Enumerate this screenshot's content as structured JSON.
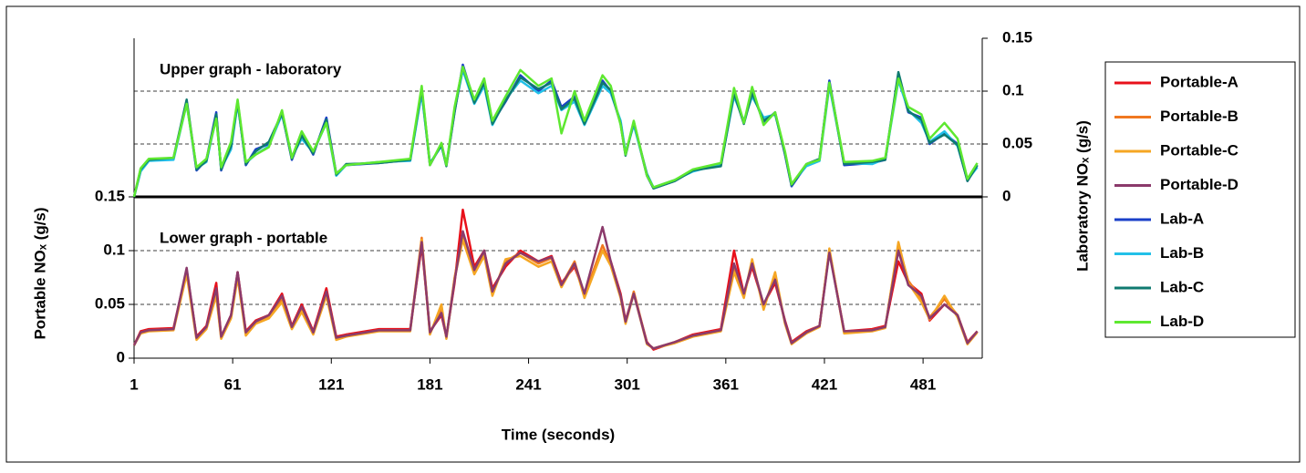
{
  "chart_data": {
    "type": "line",
    "annotations": [
      "Upper graph - laboratory",
      "Lower graph - portable"
    ],
    "x_label": "Time (seconds)",
    "y_label": "Portable NOₓ (g/s)",
    "y2_label": "Laboratory NOₓ (g/s)",
    "xlim": [
      1,
      517
    ],
    "xticks": [
      1,
      61,
      121,
      181,
      241,
      301,
      361,
      421,
      481
    ],
    "ylim": [
      0,
      0.15
    ],
    "yticks": [
      0,
      0.05,
      0.1,
      0.15
    ],
    "y2lim": [
      0,
      0.15
    ],
    "y2ticks": [
      0,
      0.05,
      0.1,
      0.15
    ],
    "grid": true,
    "legend": "right",
    "x": [
      1,
      5,
      10,
      25,
      33,
      39,
      45,
      51,
      54,
      60,
      64,
      69,
      75,
      83,
      91,
      97,
      103,
      110,
      118,
      124,
      130,
      150,
      169,
      176,
      181,
      188,
      191,
      196,
      201,
      208,
      214,
      219,
      227,
      236,
      247,
      255,
      261,
      269,
      275,
      286,
      291,
      297,
      300,
      305,
      313,
      317,
      330,
      341,
      358,
      366,
      372,
      377,
      384,
      391,
      397,
      401,
      410,
      418,
      424,
      433,
      450,
      458,
      466,
      472,
      480,
      485,
      494,
      502,
      508,
      514
    ],
    "series": [
      {
        "name": "Portable-A",
        "color": "#e8101a",
        "values": [
          0.012,
          0.025,
          0.027,
          0.028,
          0.082,
          0.02,
          0.03,
          0.07,
          0.02,
          0.04,
          0.08,
          0.025,
          0.035,
          0.04,
          0.06,
          0.03,
          0.05,
          0.025,
          0.065,
          0.02,
          0.022,
          0.027,
          0.027,
          0.105,
          0.025,
          0.04,
          0.02,
          0.07,
          0.138,
          0.085,
          0.1,
          0.065,
          0.085,
          0.1,
          0.09,
          0.095,
          0.07,
          0.085,
          0.06,
          0.1,
          0.09,
          0.06,
          0.035,
          0.06,
          0.015,
          0.008,
          0.015,
          0.022,
          0.027,
          0.1,
          0.06,
          0.085,
          0.05,
          0.07,
          0.035,
          0.015,
          0.025,
          0.03,
          0.1,
          0.025,
          0.027,
          0.03,
          0.09,
          0.07,
          0.06,
          0.035,
          0.05,
          0.04,
          0.015,
          0.025
        ]
      },
      {
        "name": "Portable-B",
        "color": "#f07820",
        "values": [
          0.012,
          0.024,
          0.026,
          0.027,
          0.08,
          0.018,
          0.028,
          0.06,
          0.019,
          0.038,
          0.078,
          0.022,
          0.033,
          0.038,
          0.055,
          0.028,
          0.045,
          0.023,
          0.06,
          0.018,
          0.021,
          0.026,
          0.026,
          0.112,
          0.023,
          0.045,
          0.019,
          0.075,
          0.115,
          0.08,
          0.098,
          0.06,
          0.09,
          0.098,
          0.088,
          0.093,
          0.068,
          0.09,
          0.058,
          0.105,
          0.088,
          0.058,
          0.033,
          0.062,
          0.014,
          0.009,
          0.015,
          0.021,
          0.026,
          0.085,
          0.058,
          0.09,
          0.048,
          0.075,
          0.033,
          0.014,
          0.024,
          0.03,
          0.1,
          0.024,
          0.026,
          0.029,
          0.105,
          0.072,
          0.055,
          0.038,
          0.055,
          0.04,
          0.014,
          0.025
        ]
      },
      {
        "name": "Portable-C",
        "color": "#f5a623",
        "values": [
          0.012,
          0.023,
          0.025,
          0.026,
          0.078,
          0.017,
          0.027,
          0.058,
          0.018,
          0.037,
          0.075,
          0.021,
          0.032,
          0.037,
          0.052,
          0.027,
          0.043,
          0.022,
          0.058,
          0.017,
          0.02,
          0.025,
          0.025,
          0.11,
          0.022,
          0.05,
          0.018,
          0.074,
          0.11,
          0.078,
          0.095,
          0.058,
          0.092,
          0.095,
          0.085,
          0.09,
          0.066,
          0.088,
          0.056,
          0.1,
          0.086,
          0.056,
          0.032,
          0.06,
          0.013,
          0.009,
          0.014,
          0.02,
          0.025,
          0.08,
          0.056,
          0.092,
          0.045,
          0.08,
          0.032,
          0.013,
          0.023,
          0.029,
          0.102,
          0.023,
          0.025,
          0.028,
          0.108,
          0.07,
          0.052,
          0.036,
          0.058,
          0.038,
          0.013,
          0.024
        ]
      },
      {
        "name": "Portable-D",
        "color": "#8b3a6b",
        "values": [
          0.012,
          0.024,
          0.026,
          0.027,
          0.084,
          0.019,
          0.029,
          0.065,
          0.02,
          0.04,
          0.08,
          0.024,
          0.034,
          0.04,
          0.058,
          0.029,
          0.048,
          0.024,
          0.062,
          0.019,
          0.021,
          0.026,
          0.026,
          0.108,
          0.024,
          0.042,
          0.02,
          0.072,
          0.118,
          0.082,
          0.1,
          0.062,
          0.088,
          0.098,
          0.09,
          0.094,
          0.068,
          0.088,
          0.06,
          0.122,
          0.09,
          0.058,
          0.034,
          0.06,
          0.014,
          0.009,
          0.015,
          0.021,
          0.026,
          0.088,
          0.06,
          0.088,
          0.05,
          0.073,
          0.034,
          0.014,
          0.024,
          0.03,
          0.098,
          0.025,
          0.026,
          0.029,
          0.1,
          0.068,
          0.058,
          0.037,
          0.05,
          0.04,
          0.014,
          0.025
        ]
      },
      {
        "name": "Lab-A",
        "color": "#1a3fc8",
        "axis": "y2",
        "values": [
          0,
          0.025,
          0.035,
          0.036,
          0.09,
          0.025,
          0.035,
          0.08,
          0.025,
          0.05,
          0.09,
          0.03,
          0.045,
          0.05,
          0.08,
          0.035,
          0.06,
          0.04,
          0.075,
          0.022,
          0.03,
          0.032,
          0.035,
          0.1,
          0.03,
          0.05,
          0.03,
          0.08,
          0.125,
          0.09,
          0.11,
          0.07,
          0.09,
          0.115,
          0.1,
          0.11,
          0.085,
          0.095,
          0.07,
          0.11,
          0.1,
          0.07,
          0.04,
          0.07,
          0.02,
          0.008,
          0.015,
          0.025,
          0.03,
          0.1,
          0.07,
          0.1,
          0.07,
          0.08,
          0.04,
          0.01,
          0.03,
          0.035,
          0.11,
          0.03,
          0.032,
          0.035,
          0.115,
          0.08,
          0.075,
          0.05,
          0.06,
          0.05,
          0.015,
          0.03
        ]
      },
      {
        "name": "Lab-B",
        "color": "#22c0e8",
        "axis": "y2",
        "values": [
          0,
          0.024,
          0.034,
          0.035,
          0.088,
          0.027,
          0.033,
          0.075,
          0.027,
          0.045,
          0.088,
          0.032,
          0.04,
          0.048,
          0.078,
          0.038,
          0.055,
          0.042,
          0.07,
          0.02,
          0.03,
          0.033,
          0.034,
          0.098,
          0.032,
          0.048,
          0.031,
          0.082,
          0.12,
          0.088,
          0.105,
          0.068,
          0.092,
          0.11,
          0.098,
          0.105,
          0.082,
          0.09,
          0.068,
          0.105,
          0.098,
          0.072,
          0.042,
          0.068,
          0.022,
          0.009,
          0.016,
          0.024,
          0.031,
          0.095,
          0.072,
          0.095,
          0.075,
          0.078,
          0.042,
          0.012,
          0.029,
          0.034,
          0.105,
          0.032,
          0.031,
          0.036,
          0.11,
          0.082,
          0.07,
          0.052,
          0.062,
          0.048,
          0.016,
          0.028
        ]
      },
      {
        "name": "Lab-C",
        "color": "#0f7a70",
        "axis": "y2",
        "values": [
          0,
          0.026,
          0.035,
          0.037,
          0.092,
          0.026,
          0.034,
          0.078,
          0.026,
          0.048,
          0.09,
          0.031,
          0.043,
          0.052,
          0.079,
          0.036,
          0.058,
          0.041,
          0.073,
          0.021,
          0.031,
          0.032,
          0.035,
          0.102,
          0.031,
          0.049,
          0.029,
          0.081,
          0.123,
          0.089,
          0.108,
          0.069,
          0.091,
          0.113,
          0.102,
          0.108,
          0.083,
          0.093,
          0.069,
          0.108,
          0.101,
          0.069,
          0.039,
          0.071,
          0.021,
          0.008,
          0.015,
          0.025,
          0.029,
          0.098,
          0.069,
          0.098,
          0.072,
          0.079,
          0.041,
          0.011,
          0.031,
          0.036,
          0.108,
          0.031,
          0.033,
          0.035,
          0.118,
          0.081,
          0.073,
          0.051,
          0.059,
          0.049,
          0.015,
          0.03
        ]
      },
      {
        "name": "Lab-D",
        "color": "#5ee830",
        "axis": "y2",
        "values": [
          0,
          0.027,
          0.036,
          0.037,
          0.088,
          0.028,
          0.036,
          0.074,
          0.028,
          0.052,
          0.092,
          0.033,
          0.04,
          0.047,
          0.082,
          0.037,
          0.062,
          0.043,
          0.07,
          0.022,
          0.03,
          0.033,
          0.036,
          0.105,
          0.03,
          0.051,
          0.03,
          0.085,
          0.123,
          0.092,
          0.112,
          0.072,
          0.095,
          0.12,
          0.105,
          0.112,
          0.06,
          0.1,
          0.072,
          0.115,
          0.105,
          0.068,
          0.04,
          0.072,
          0.02,
          0.009,
          0.016,
          0.026,
          0.032,
          0.103,
          0.07,
          0.104,
          0.068,
          0.08,
          0.043,
          0.012,
          0.031,
          0.035,
          0.108,
          0.033,
          0.034,
          0.037,
          0.112,
          0.085,
          0.078,
          0.055,
          0.07,
          0.055,
          0.017,
          0.032
        ]
      }
    ]
  }
}
